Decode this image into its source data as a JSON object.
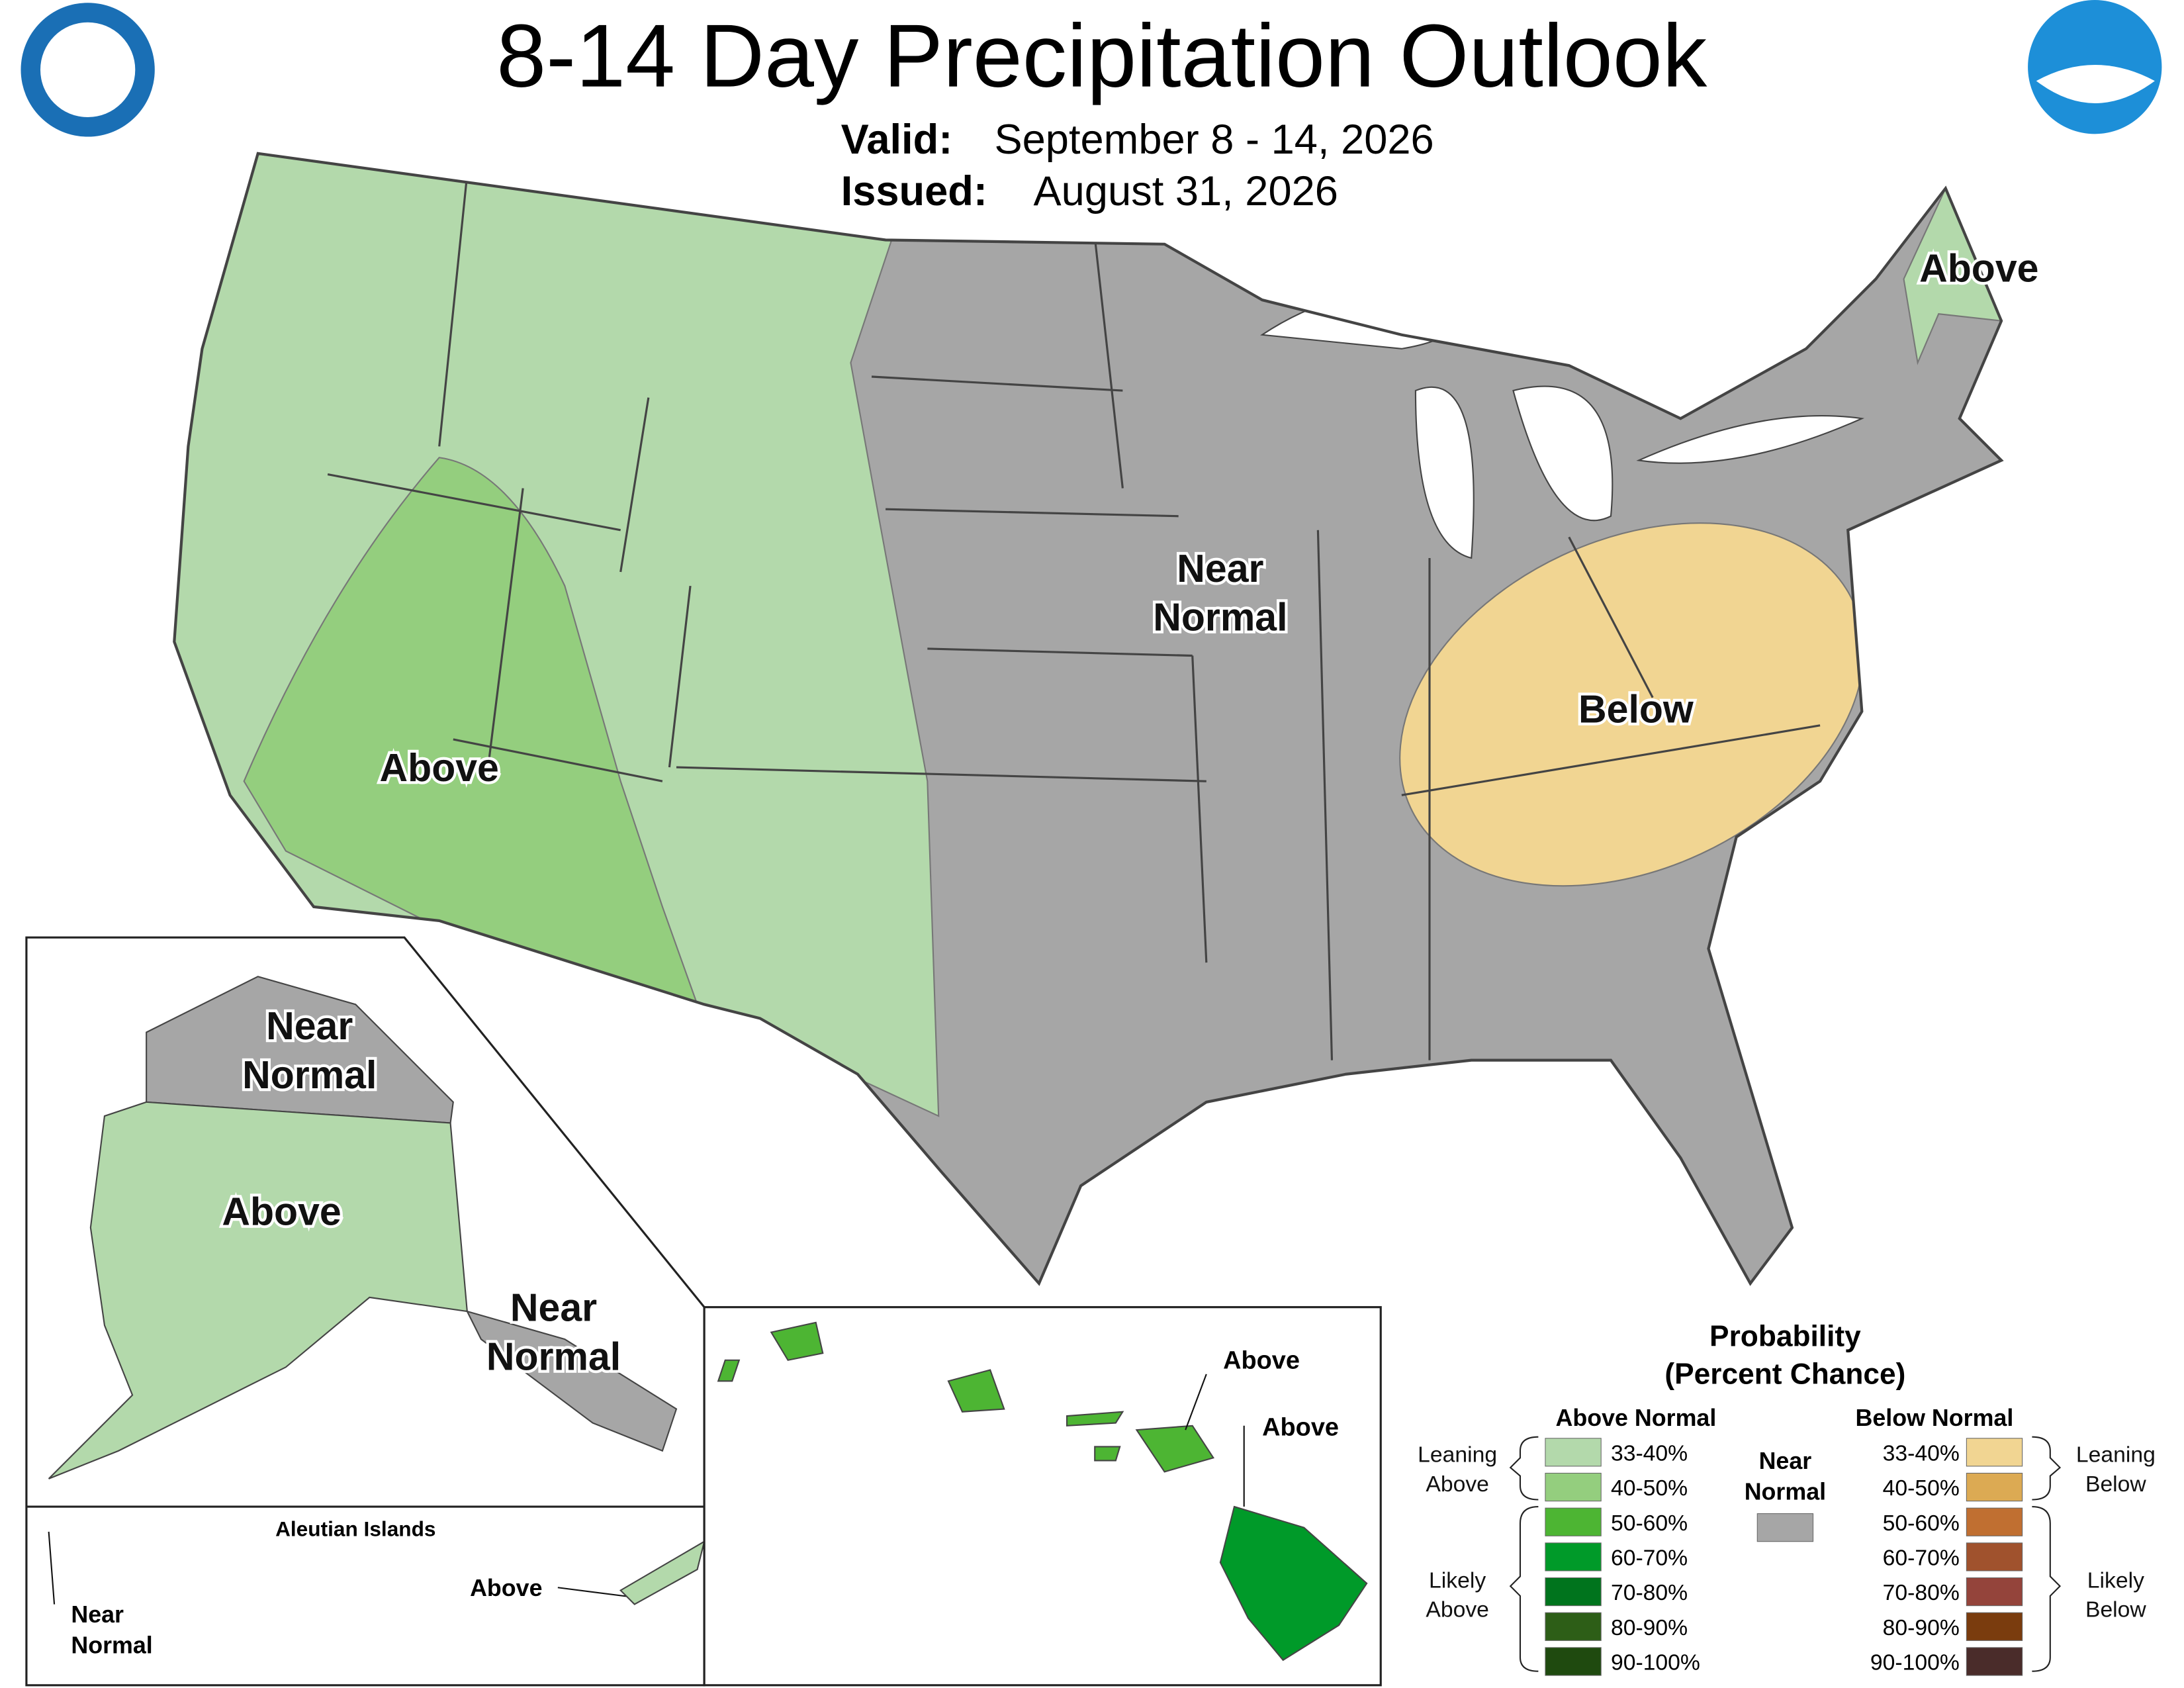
{
  "header": {
    "title": "8-14 Day Precipitation Outlook",
    "valid_label": "Valid:",
    "valid": "September 8 - 14, 2026",
    "issued_label": "Issued:",
    "issued": "August 31, 2026"
  },
  "conus_labels": [
    {
      "lines": [
        "Above"
      ]
    },
    {
      "lines": [
        "Near",
        "Normal"
      ]
    },
    {
      "lines": [
        "Below"
      ]
    },
    {
      "lines": [
        "Above"
      ]
    }
  ],
  "alaska_labels": [
    {
      "lines": [
        "Near",
        "Normal"
      ]
    },
    {
      "lines": [
        "Above"
      ]
    },
    {
      "lines": [
        "Near",
        "Normal"
      ]
    }
  ],
  "aleutian": {
    "title": "Aleutian Islands",
    "labels": [
      {
        "lines": [
          "Near",
          "Normal"
        ]
      },
      {
        "lines": [
          "Above"
        ]
      }
    ]
  },
  "hawaii_labels": [
    {
      "lines": [
        "Above"
      ]
    },
    {
      "lines": [
        "Above"
      ]
    }
  ],
  "legend": {
    "title": [
      "Probability",
      "(Percent Chance)"
    ],
    "above_header": "Above Normal",
    "below_header": "Below Normal",
    "near": {
      "lines": [
        "Near",
        "Normal"
      ],
      "color": "#a6a6a6"
    },
    "above": [
      {
        "label": "33-40%",
        "color": "#b3d9ab"
      },
      {
        "label": "40-50%",
        "color": "#94ce7e"
      },
      {
        "label": "50-60%",
        "color": "#4db533"
      },
      {
        "label": "60-70%",
        "color": "#009a29"
      },
      {
        "label": "70-80%",
        "color": "#00741d"
      },
      {
        "label": "80-90%",
        "color": "#2d5e17"
      },
      {
        "label": "90-100%",
        "color": "#1f4a0f"
      }
    ],
    "below": [
      {
        "label": "33-40%",
        "color": "#f1d592"
      },
      {
        "label": "40-50%",
        "color": "#dcaa53"
      },
      {
        "label": "50-60%",
        "color": "#c06f31"
      },
      {
        "label": "60-70%",
        "color": "#a0522d"
      },
      {
        "label": "70-80%",
        "color": "#94443b"
      },
      {
        "label": "80-90%",
        "color": "#7a3c0e"
      },
      {
        "label": "90-100%",
        "color": "#4a2c2a"
      }
    ],
    "brackets": [
      {
        "lines": [
          "Leaning",
          "Above"
        ]
      },
      {
        "lines": [
          "Likely",
          "Above"
        ]
      },
      {
        "lines": [
          "Leaning",
          "Below"
        ]
      },
      {
        "lines": [
          "Likely",
          "Below"
        ]
      }
    ]
  }
}
